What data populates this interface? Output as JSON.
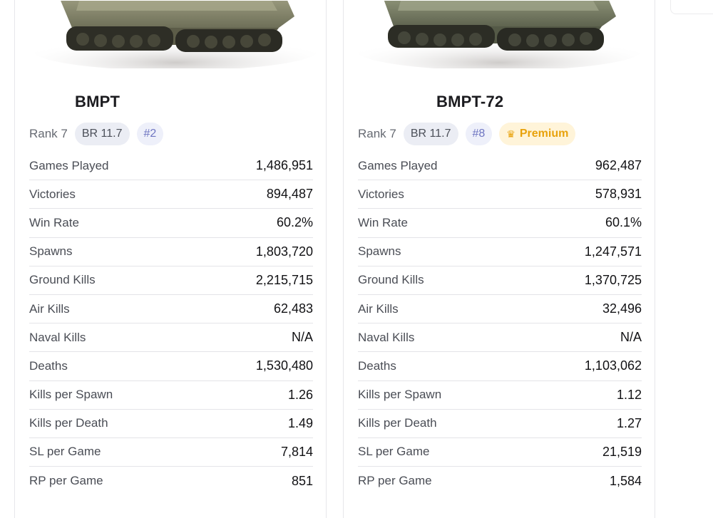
{
  "vehicles": [
    {
      "name": "BMPT",
      "rank": "Rank 7",
      "br": "BR 11.7",
      "position": "#2",
      "premium": null,
      "stats": [
        {
          "label": "Games Played",
          "value": "1,486,951"
        },
        {
          "label": "Victories",
          "value": "894,487"
        },
        {
          "label": "Win Rate",
          "value": "60.2%"
        },
        {
          "label": "Spawns",
          "value": "1,803,720"
        },
        {
          "label": "Ground Kills",
          "value": "2,215,715"
        },
        {
          "label": "Air Kills",
          "value": "62,483"
        },
        {
          "label": "Naval Kills",
          "value": "N/A"
        },
        {
          "label": "Deaths",
          "value": "1,530,480"
        },
        {
          "label": "Kills per Spawn",
          "value": "1.26"
        },
        {
          "label": "Kills per Death",
          "value": "1.49"
        },
        {
          "label": "SL per Game",
          "value": "7,814"
        },
        {
          "label": "RP per Game",
          "value": "851"
        }
      ]
    },
    {
      "name": "BMPT-72",
      "rank": "Rank 7",
      "br": "BR 11.7",
      "position": "#8",
      "premium": "Premium",
      "stats": [
        {
          "label": "Games Played",
          "value": "962,487"
        },
        {
          "label": "Victories",
          "value": "578,931"
        },
        {
          "label": "Win Rate",
          "value": "60.1%"
        },
        {
          "label": "Spawns",
          "value": "1,247,571"
        },
        {
          "label": "Ground Kills",
          "value": "1,370,725"
        },
        {
          "label": "Air Kills",
          "value": "32,496"
        },
        {
          "label": "Naval Kills",
          "value": "N/A"
        },
        {
          "label": "Deaths",
          "value": "1,103,062"
        },
        {
          "label": "Kills per Spawn",
          "value": "1.12"
        },
        {
          "label": "Kills per Death",
          "value": "1.27"
        },
        {
          "label": "SL per Game",
          "value": "21,519"
        },
        {
          "label": "RP per Game",
          "value": "1,584"
        }
      ]
    }
  ],
  "icons": {
    "tank_image": "tank-image",
    "premium": "premium-eagle-icon"
  },
  "colors": {
    "premium_text": "#e8a20c",
    "premium_bg": "#fff4d9",
    "position_text": "#6f76c2",
    "br_bg": "#ebedf4"
  }
}
